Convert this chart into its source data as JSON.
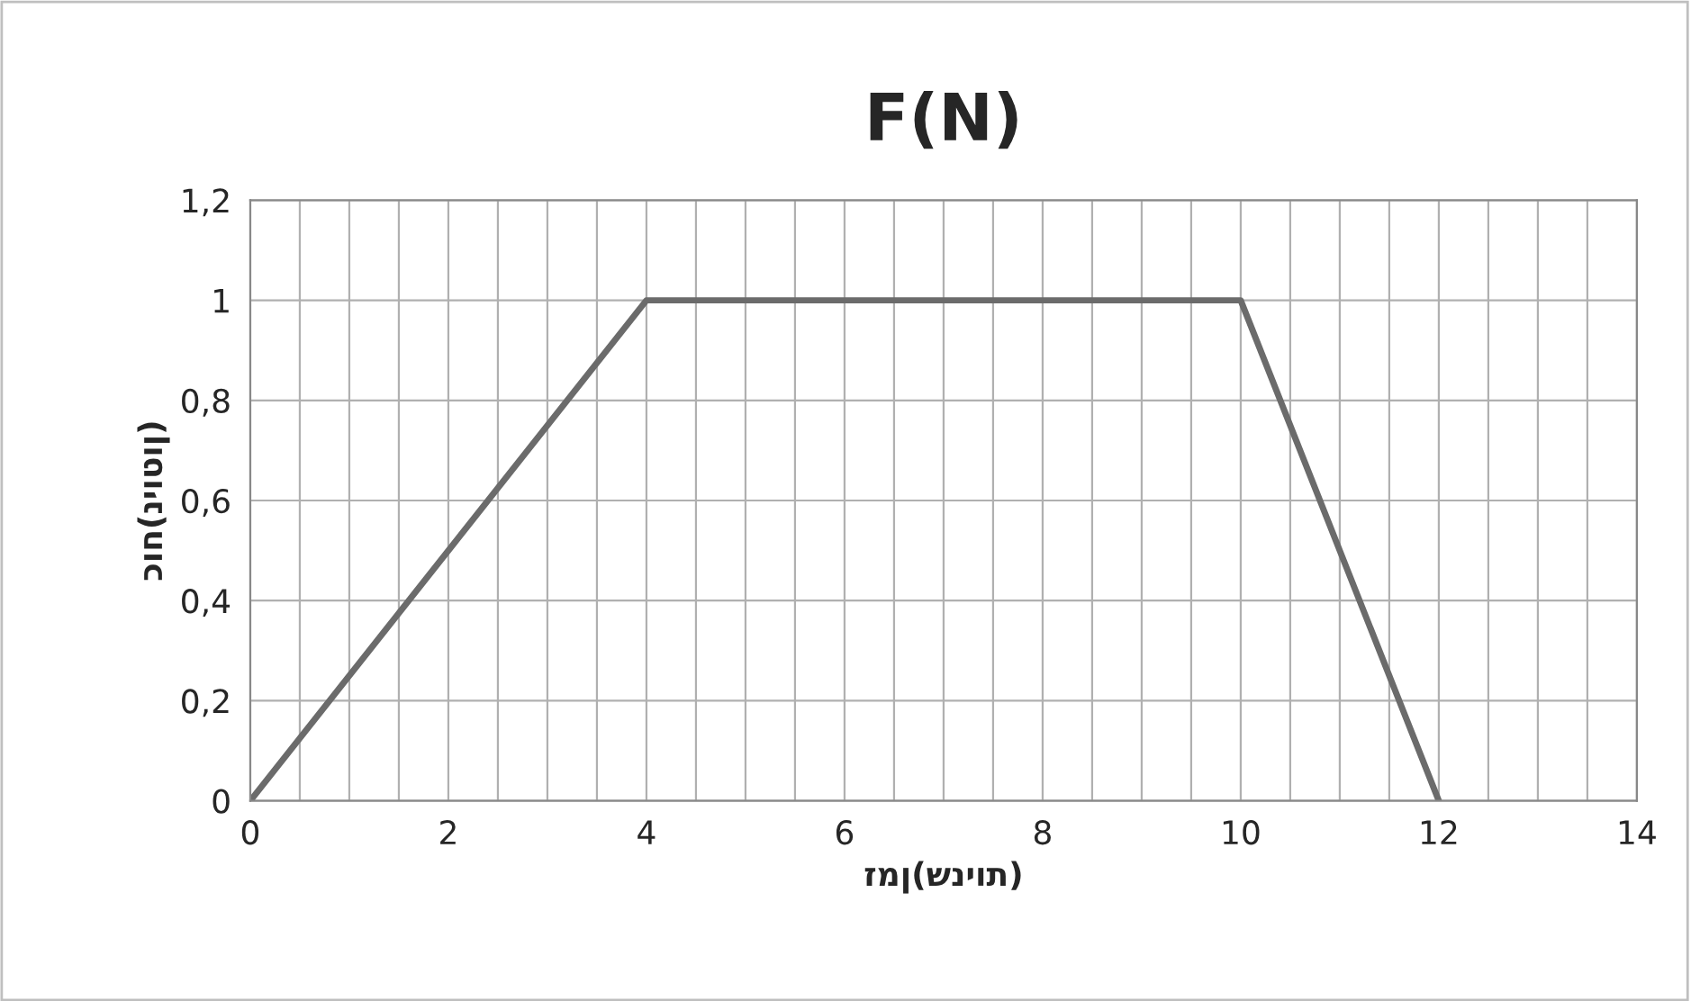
{
  "chart_data": {
    "type": "line",
    "title": "F(N)",
    "xlabel": "זמן(שניות)",
    "ylabel": "כוח(ניוטון)",
    "x": [
      0,
      4,
      10,
      12
    ],
    "series": [
      {
        "color": "#6b6b6b",
        "values": [
          0,
          1,
          1,
          0
        ]
      }
    ],
    "xlim": [
      0,
      14
    ],
    "xticks": [
      0,
      2,
      4,
      6,
      8,
      10,
      12,
      14
    ],
    "ylim": [
      0,
      1.2
    ],
    "yticks": [
      0,
      {
        "value": 0.2,
        "label": "0,2"
      },
      {
        "value": 0.4,
        "label": "0,4"
      },
      {
        "value": 0.6,
        "label": "0,6"
      },
      {
        "value": 0.8,
        "label": "0,8"
      },
      1,
      {
        "value": 1.2,
        "label": "1,2"
      }
    ],
    "grid": true,
    "marker": "none",
    "line_style": "solid"
  }
}
